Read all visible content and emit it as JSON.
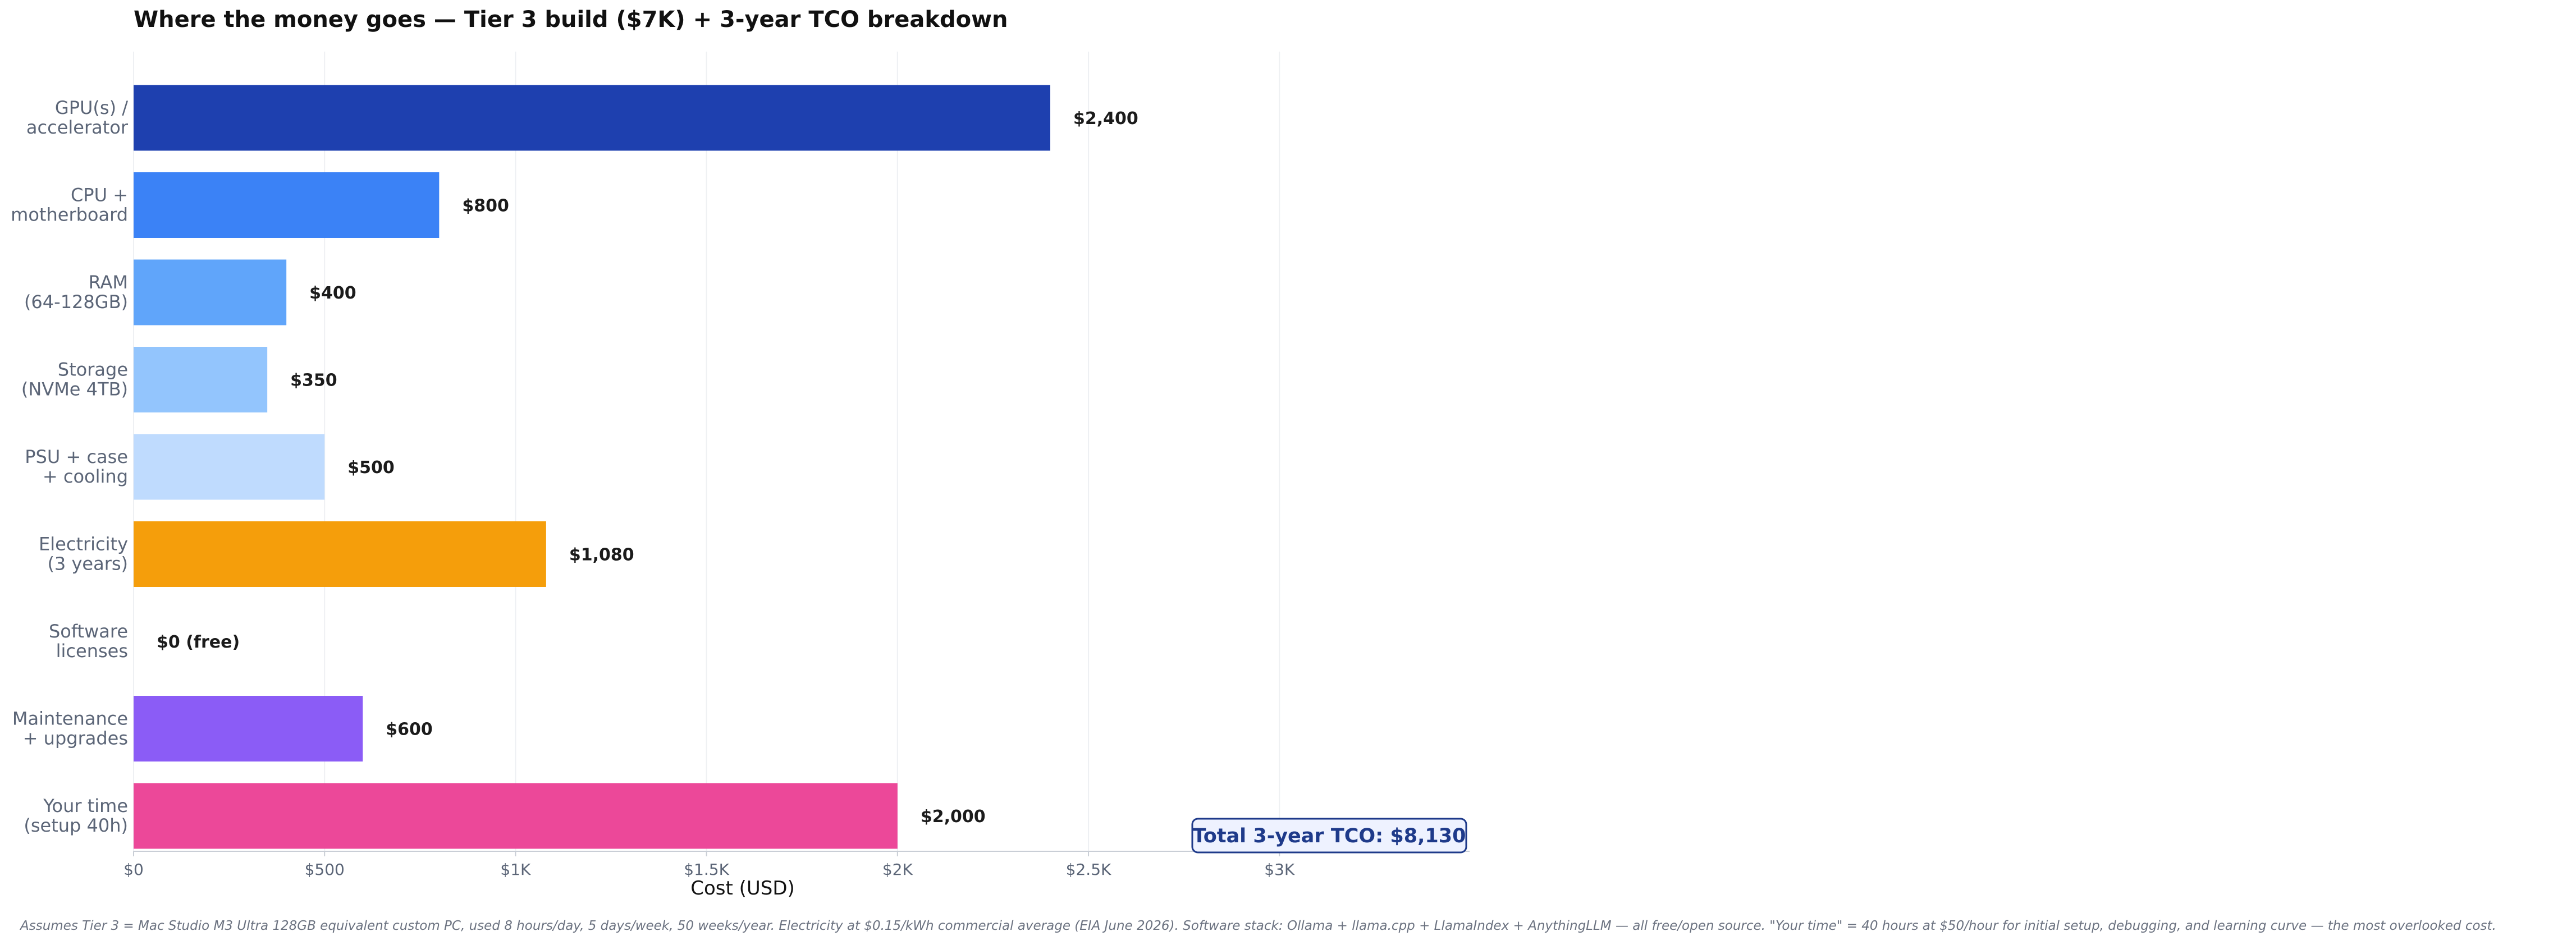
{
  "chart_data": {
    "type": "bar",
    "orientation": "horizontal",
    "title": "Where the money goes — Tier 3 build ($7K) + 3-year TCO breakdown",
    "xlabel": "Cost (USD)",
    "ylabel": "",
    "xlim": [
      0,
      3400
    ],
    "x_ticks": [
      0,
      500,
      1000,
      1500,
      2000,
      2500,
      3000
    ],
    "x_tick_labels": [
      "$0",
      "$500",
      "$1K",
      "$1.5K",
      "$2K",
      "$2.5K",
      "$3K"
    ],
    "grid": "vertical, light",
    "categories": [
      [
        "GPU(s) /",
        "accelerator"
      ],
      [
        "CPU +",
        "motherboard"
      ],
      [
        "RAM",
        "(64-128GB)"
      ],
      [
        "Storage",
        "(NVMe 4TB)"
      ],
      [
        "PSU + case",
        "+ cooling"
      ],
      [
        "Electricity",
        "(3 years)"
      ],
      [
        "Software",
        "licenses"
      ],
      [
        "Maintenance",
        "+ upgrades"
      ],
      [
        "Your time",
        "(setup 40h)"
      ]
    ],
    "values": [
      2400,
      800,
      400,
      350,
      500,
      1080,
      0,
      600,
      2000
    ],
    "value_labels": [
      "$2,400",
      "$800",
      "$400",
      "$350",
      "$500",
      "$1,080",
      "$0 (free)",
      "$600",
      "$2,000"
    ],
    "colors": [
      "#1e40af",
      "#3b82f6",
      "#60a5fa",
      "#93c5fd",
      "#bfdbfe",
      "#f59e0b",
      "#10b981",
      "#8b5cf6",
      "#ec4899"
    ],
    "special_label_colors": {
      "6": "#10b981"
    },
    "annotation": "Total 3-year TCO: $8,130",
    "annotation_color": "#1e3a8a",
    "annotation_bg": "#eef2ff",
    "footnote": "Assumes Tier 3 = Mac Studio M3 Ultra 128GB equivalent custom PC, used 8 hours/day, 5 days/week, 50 weeks/year. Electricity at $0.15/kWh commercial average (EIA June 2026). Software stack: Ollama + llama.cpp + LlamaIndex + AnythingLLM — all free/open source. \"Your time\" = 40 hours at $50/hour for initial setup, debugging, and learning curve — the most overlooked cost."
  }
}
